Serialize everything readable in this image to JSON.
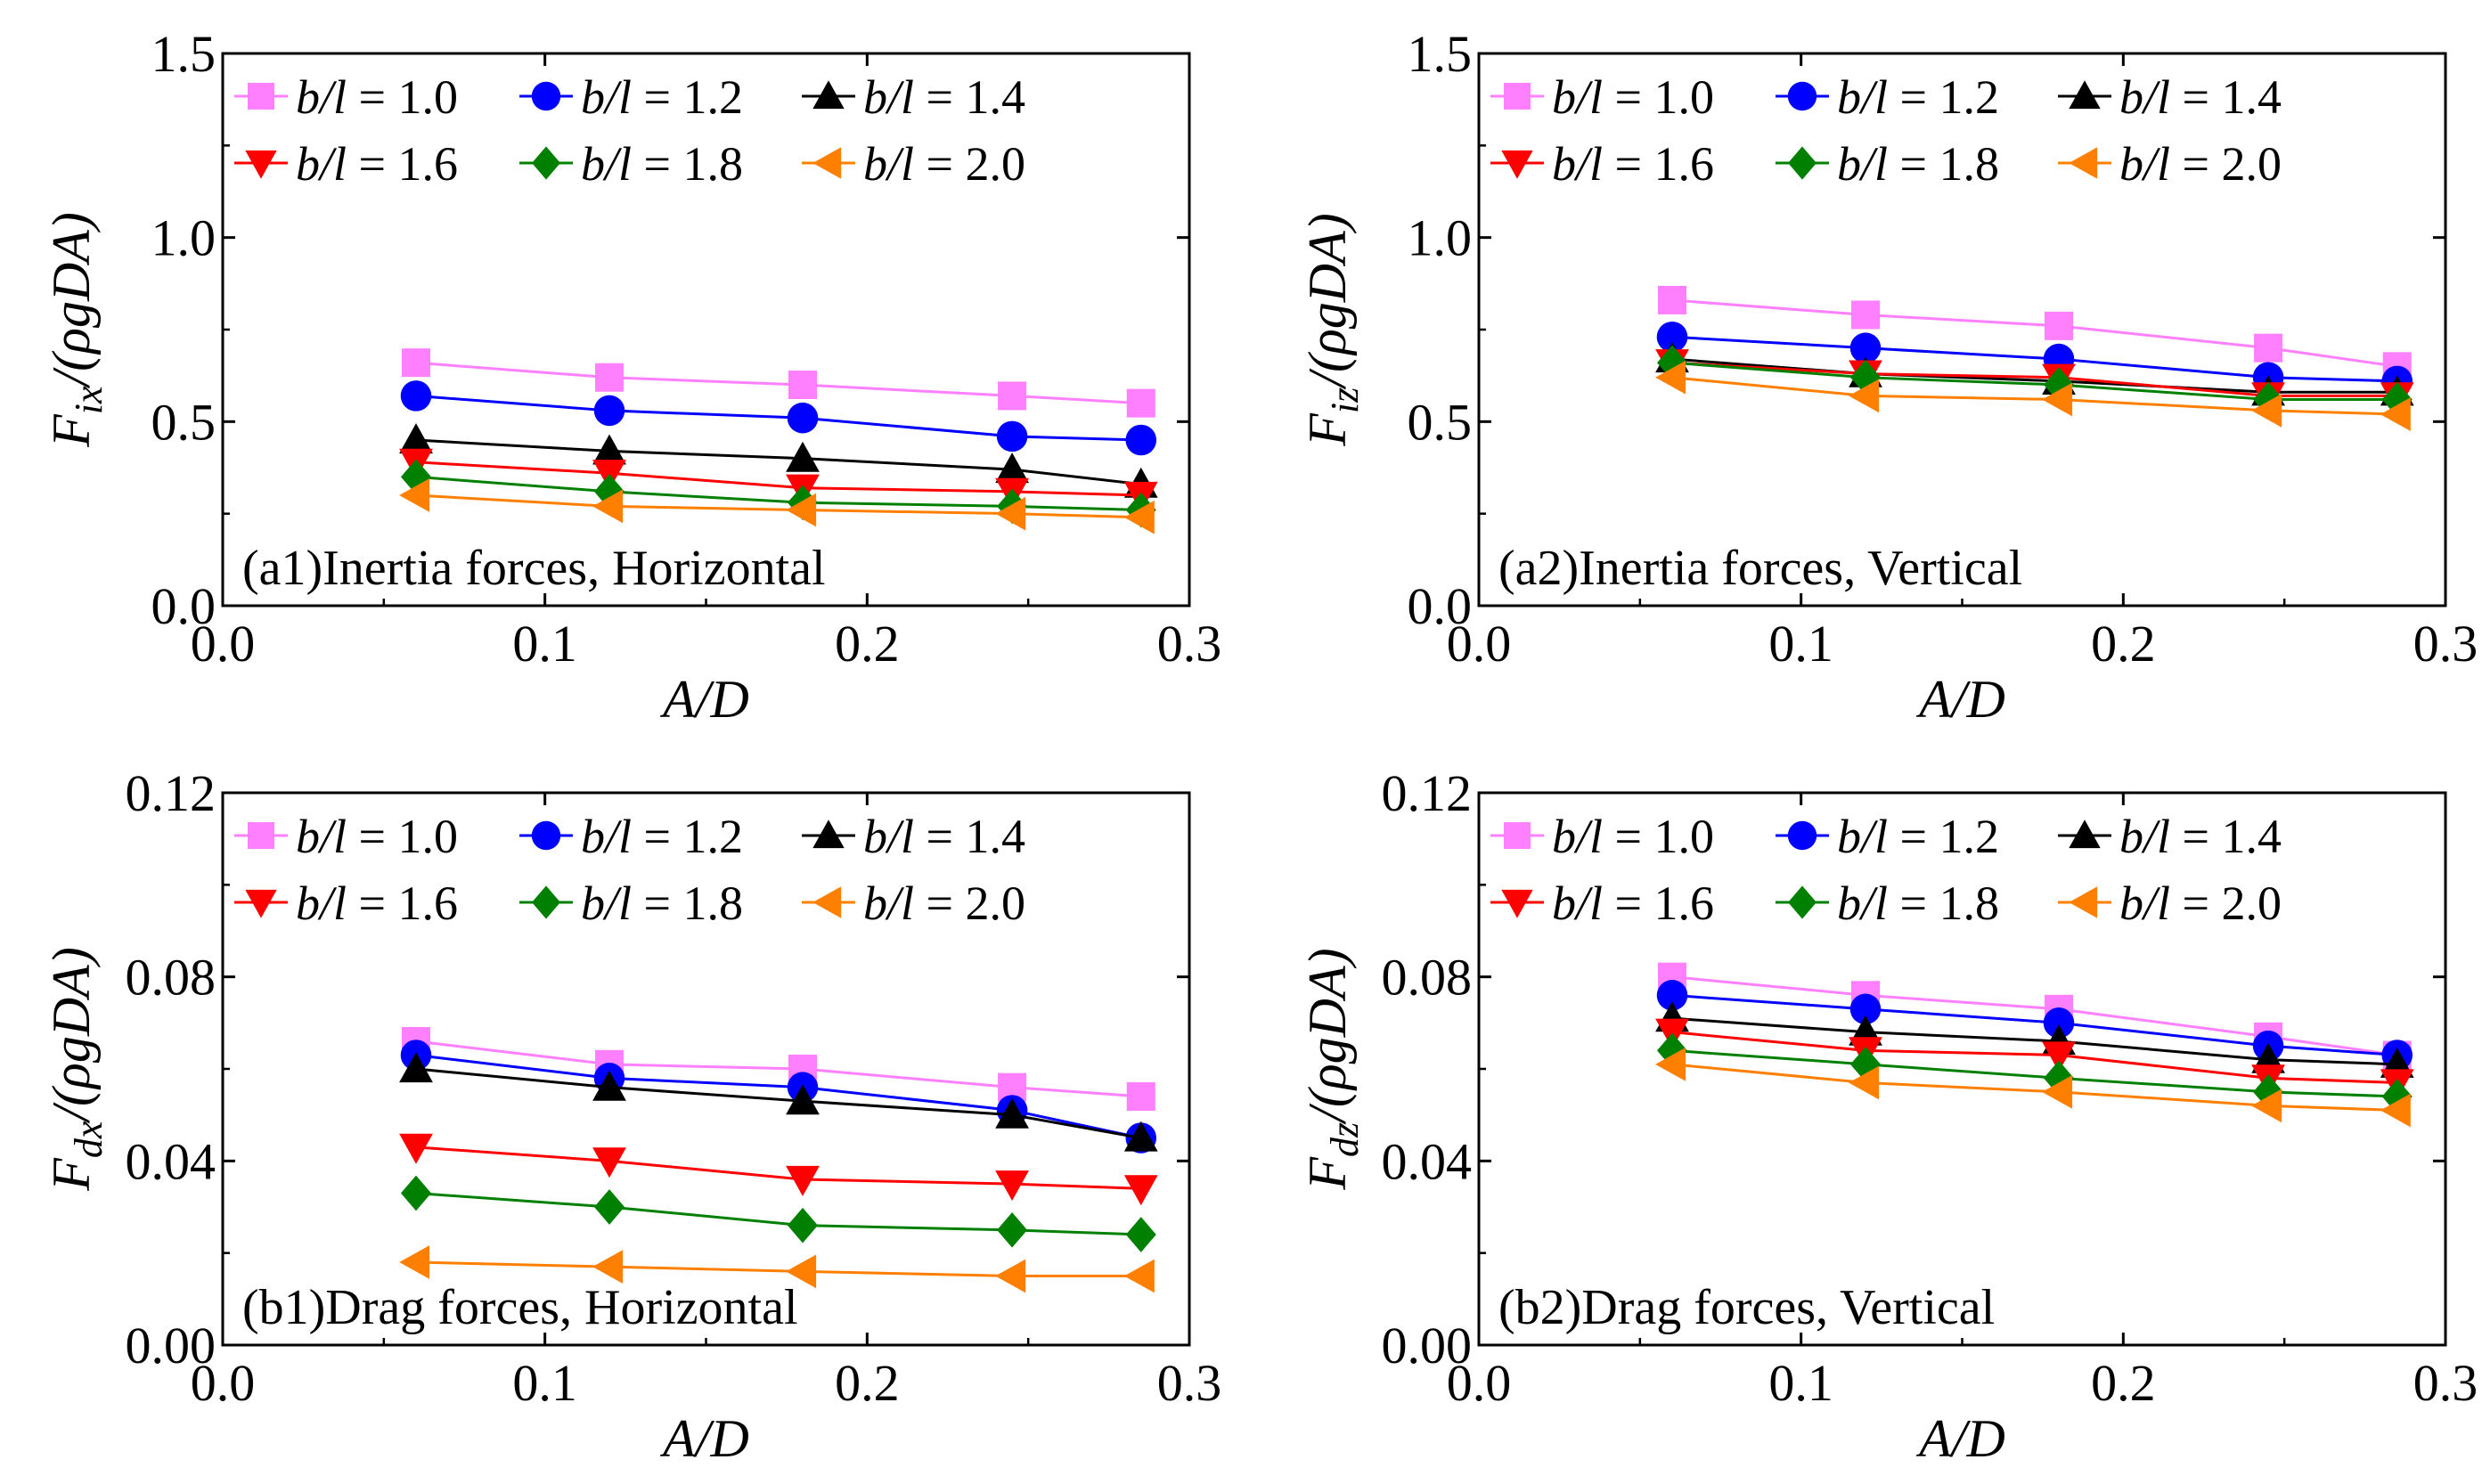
{
  "chart_data": [
    {
      "id": "a1",
      "type": "line",
      "annotation": "(a1)Inertia forces, Horizontal",
      "xlabel": "A/D",
      "ylabel": {
        "main": "F",
        "sub": "ix",
        "rest": "/(ρgDA)"
      },
      "xlim": [
        0,
        0.3
      ],
      "ylim": [
        0,
        1.5
      ],
      "xticks": [
        0.0,
        0.1,
        0.2,
        0.3
      ],
      "xtick_labels": [
        "0.0",
        "0.1",
        "0.2",
        "0.3"
      ],
      "yticks": [
        0.0,
        0.5,
        1.0,
        1.5
      ],
      "ytick_labels": [
        "0.0",
        "0.5",
        "1.0",
        "1.5"
      ],
      "x": [
        0.06,
        0.12,
        0.18,
        0.245,
        0.285
      ],
      "series": [
        {
          "name": "b/l = 1.0",
          "values": [
            0.66,
            0.62,
            0.6,
            0.57,
            0.55
          ]
        },
        {
          "name": "b/l = 1.2",
          "values": [
            0.57,
            0.53,
            0.51,
            0.46,
            0.45
          ]
        },
        {
          "name": "b/l = 1.4",
          "values": [
            0.45,
            0.42,
            0.4,
            0.37,
            0.33
          ]
        },
        {
          "name": "b/l = 1.6",
          "values": [
            0.39,
            0.36,
            0.32,
            0.31,
            0.3
          ]
        },
        {
          "name": "b/l = 1.8",
          "values": [
            0.35,
            0.31,
            0.28,
            0.27,
            0.26
          ]
        },
        {
          "name": "b/l = 2.0",
          "values": [
            0.3,
            0.27,
            0.26,
            0.25,
            0.24
          ]
        }
      ]
    },
    {
      "id": "a2",
      "type": "line",
      "annotation": "(a2)Inertia forces, Vertical",
      "xlabel": "A/D",
      "ylabel": {
        "main": "F",
        "sub": "iz",
        "rest": "/(ρgDA)"
      },
      "xlim": [
        0,
        0.3
      ],
      "ylim": [
        0,
        1.5
      ],
      "xticks": [
        0.0,
        0.1,
        0.2,
        0.3
      ],
      "xtick_labels": [
        "0.0",
        "0.1",
        "0.2",
        "0.3"
      ],
      "yticks": [
        0.0,
        0.5,
        1.0,
        1.5
      ],
      "ytick_labels": [
        "0.0",
        "0.5",
        "1.0",
        "1.5"
      ],
      "x": [
        0.06,
        0.12,
        0.18,
        0.245,
        0.285
      ],
      "series": [
        {
          "name": "b/l = 1.0",
          "values": [
            0.83,
            0.79,
            0.76,
            0.7,
            0.65
          ]
        },
        {
          "name": "b/l = 1.2",
          "values": [
            0.73,
            0.7,
            0.67,
            0.62,
            0.61
          ]
        },
        {
          "name": "b/l = 1.4",
          "values": [
            0.67,
            0.63,
            0.61,
            0.58,
            0.58
          ]
        },
        {
          "name": "b/l = 1.6",
          "values": [
            0.66,
            0.63,
            0.62,
            0.57,
            0.57
          ]
        },
        {
          "name": "b/l = 1.8",
          "values": [
            0.66,
            0.62,
            0.6,
            0.56,
            0.56
          ]
        },
        {
          "name": "b/l = 2.0",
          "values": [
            0.62,
            0.57,
            0.56,
            0.53,
            0.52
          ]
        }
      ]
    },
    {
      "id": "b1",
      "type": "line",
      "annotation": "(b1)Drag forces, Horizontal",
      "xlabel": "A/D",
      "ylabel": {
        "main": "F",
        "sub": "dx",
        "rest": "/(ρgDA)"
      },
      "xlim": [
        0,
        0.3
      ],
      "ylim": [
        0,
        0.12
      ],
      "xticks": [
        0.0,
        0.1,
        0.2,
        0.3
      ],
      "xtick_labels": [
        "0.0",
        "0.1",
        "0.2",
        "0.3"
      ],
      "yticks": [
        0.0,
        0.04,
        0.08,
        0.12
      ],
      "ytick_labels": [
        "0.00",
        "0.04",
        "0.08",
        "0.12"
      ],
      "x": [
        0.06,
        0.12,
        0.18,
        0.245,
        0.285
      ],
      "series": [
        {
          "name": "b/l = 1.0",
          "values": [
            0.066,
            0.061,
            0.06,
            0.056,
            0.054
          ]
        },
        {
          "name": "b/l = 1.2",
          "values": [
            0.063,
            0.058,
            0.056,
            0.051,
            0.045
          ]
        },
        {
          "name": "b/l = 1.4",
          "values": [
            0.06,
            0.056,
            0.053,
            0.05,
            0.045
          ]
        },
        {
          "name": "b/l = 1.6",
          "values": [
            0.043,
            0.04,
            0.036,
            0.035,
            0.034
          ]
        },
        {
          "name": "b/l = 1.8",
          "values": [
            0.033,
            0.03,
            0.026,
            0.025,
            0.024
          ]
        },
        {
          "name": "b/l = 2.0",
          "values": [
            0.018,
            0.017,
            0.016,
            0.015,
            0.015
          ]
        }
      ]
    },
    {
      "id": "b2",
      "type": "line",
      "annotation": "(b2)Drag forces, Vertical",
      "xlabel": "A/D",
      "ylabel": {
        "main": "F",
        "sub": "dz",
        "rest": "/(ρgDA)"
      },
      "xlim": [
        0,
        0.3
      ],
      "ylim": [
        0,
        0.12
      ],
      "xticks": [
        0.0,
        0.1,
        0.2,
        0.3
      ],
      "xtick_labels": [
        "0.0",
        "0.1",
        "0.2",
        "0.3"
      ],
      "yticks": [
        0.0,
        0.04,
        0.08,
        0.12
      ],
      "ytick_labels": [
        "0.00",
        "0.04",
        "0.08",
        "0.12"
      ],
      "x": [
        0.06,
        0.12,
        0.18,
        0.245,
        0.285
      ],
      "series": [
        {
          "name": "b/l = 1.0",
          "values": [
            0.08,
            0.076,
            0.073,
            0.067,
            0.063
          ]
        },
        {
          "name": "b/l = 1.2",
          "values": [
            0.076,
            0.073,
            0.07,
            0.065,
            0.063
          ]
        },
        {
          "name": "b/l = 1.4",
          "values": [
            0.071,
            0.068,
            0.066,
            0.062,
            0.061
          ]
        },
        {
          "name": "b/l = 1.6",
          "values": [
            0.068,
            0.064,
            0.063,
            0.058,
            0.057
          ]
        },
        {
          "name": "b/l = 1.8",
          "values": [
            0.064,
            0.061,
            0.058,
            0.055,
            0.054
          ]
        },
        {
          "name": "b/l = 2.0",
          "values": [
            0.061,
            0.057,
            0.055,
            0.052,
            0.051
          ]
        }
      ]
    }
  ],
  "legend_names": [
    "b/l = 1.0",
    "b/l = 1.2",
    "b/l = 1.4",
    "b/l = 1.6",
    "b/l = 1.8",
    "b/l = 2.0"
  ],
  "series_styles": [
    {
      "color": "#ff80ff",
      "marker": "square"
    },
    {
      "color": "#0000ff",
      "marker": "circle"
    },
    {
      "color": "#000000",
      "marker": "triangle-up"
    },
    {
      "color": "#ff0000",
      "marker": "triangle-down"
    },
    {
      "color": "#008000",
      "marker": "diamond"
    },
    {
      "color": "#ff8000",
      "marker": "triangle-left"
    }
  ]
}
